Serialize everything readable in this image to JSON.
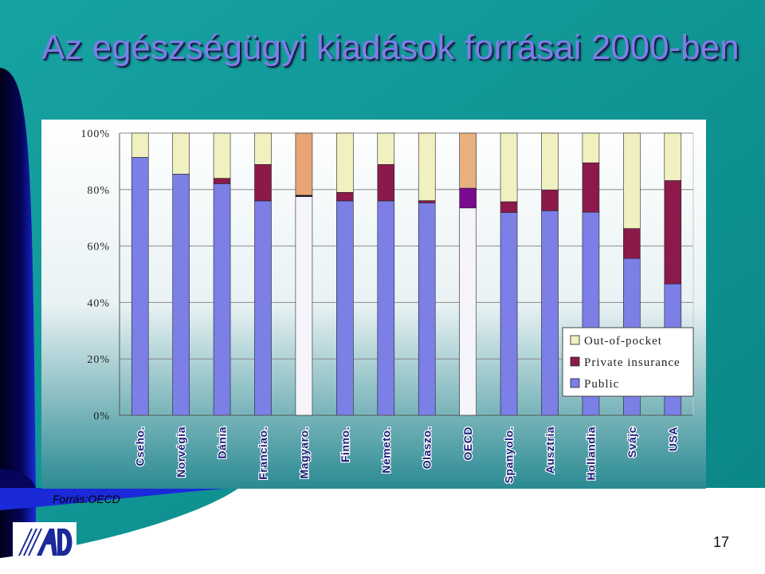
{
  "slide": {
    "title": "Az egészségügyi kiadások forrásai 2000-ben",
    "source": "Forrás:OECD",
    "page_number": "17",
    "colors": {
      "background_teal": "#0b8f8f",
      "title": "#7b7fe6",
      "dark_navy": "#0a0a3a"
    }
  },
  "logo": {
    "icon": "organization-logo-icon"
  },
  "chart_data": {
    "type": "bar",
    "stacked": true,
    "percent_stacked": true,
    "categories": [
      "Cseho.",
      "Norvégia",
      "Dánia",
      "Franciao.",
      "Magyaro.",
      "Finno.",
      "Németo.",
      "Olaszo.",
      "OECD",
      "Spanyolo.",
      "Ausztria",
      "Hollandia",
      "Svájc",
      "USA"
    ],
    "series": [
      {
        "name": "Public",
        "color": "#7b7fe6",
        "values": [
          91.4,
          85.5,
          82.1,
          76.0,
          77.5,
          76.0,
          76.0,
          75.3,
          73.5,
          71.9,
          72.5,
          72.0,
          55.6,
          46.6
        ]
      },
      {
        "name": "Private insurance",
        "color": "#8b1a4a",
        "values": [
          0,
          0,
          1.9,
          12.9,
          0.5,
          3.0,
          12.9,
          0.8,
          7.0,
          3.8,
          7.4,
          17.5,
          10.6,
          36.6
        ]
      },
      {
        "name": "Out-of-pocket",
        "color": "#f0f0c0",
        "values": [
          8.6,
          14.5,
          16.0,
          11.1,
          22.0,
          21.0,
          11.1,
          23.9,
          19.5,
          24.3,
          20.1,
          10.5,
          33.8,
          16.8
        ]
      }
    ],
    "highlight": [
      {
        "category": "Magyaro.",
        "colors": {
          "Public": "#f4f4fa",
          "Private insurance": "#0b1a40",
          "Out-of-pocket": "#e8a574"
        }
      },
      {
        "category": "OECD",
        "colors": {
          "Public": "#f4f4fa",
          "Private insurance": "#7a0a90",
          "Out-of-pocket": "#e8b080"
        }
      }
    ],
    "yticks": [
      "0%",
      "20%",
      "40%",
      "60%",
      "80%",
      "100%"
    ],
    "ylim": [
      0,
      100
    ],
    "grid": true,
    "legend": {
      "placement": "right",
      "entries": [
        {
          "label": "Out-of-pocket",
          "color": "#f0f0c0"
        },
        {
          "label": "Private insurance",
          "color": "#8b1a4a"
        },
        {
          "label": "Public",
          "color": "#7b7fe6"
        }
      ]
    }
  }
}
